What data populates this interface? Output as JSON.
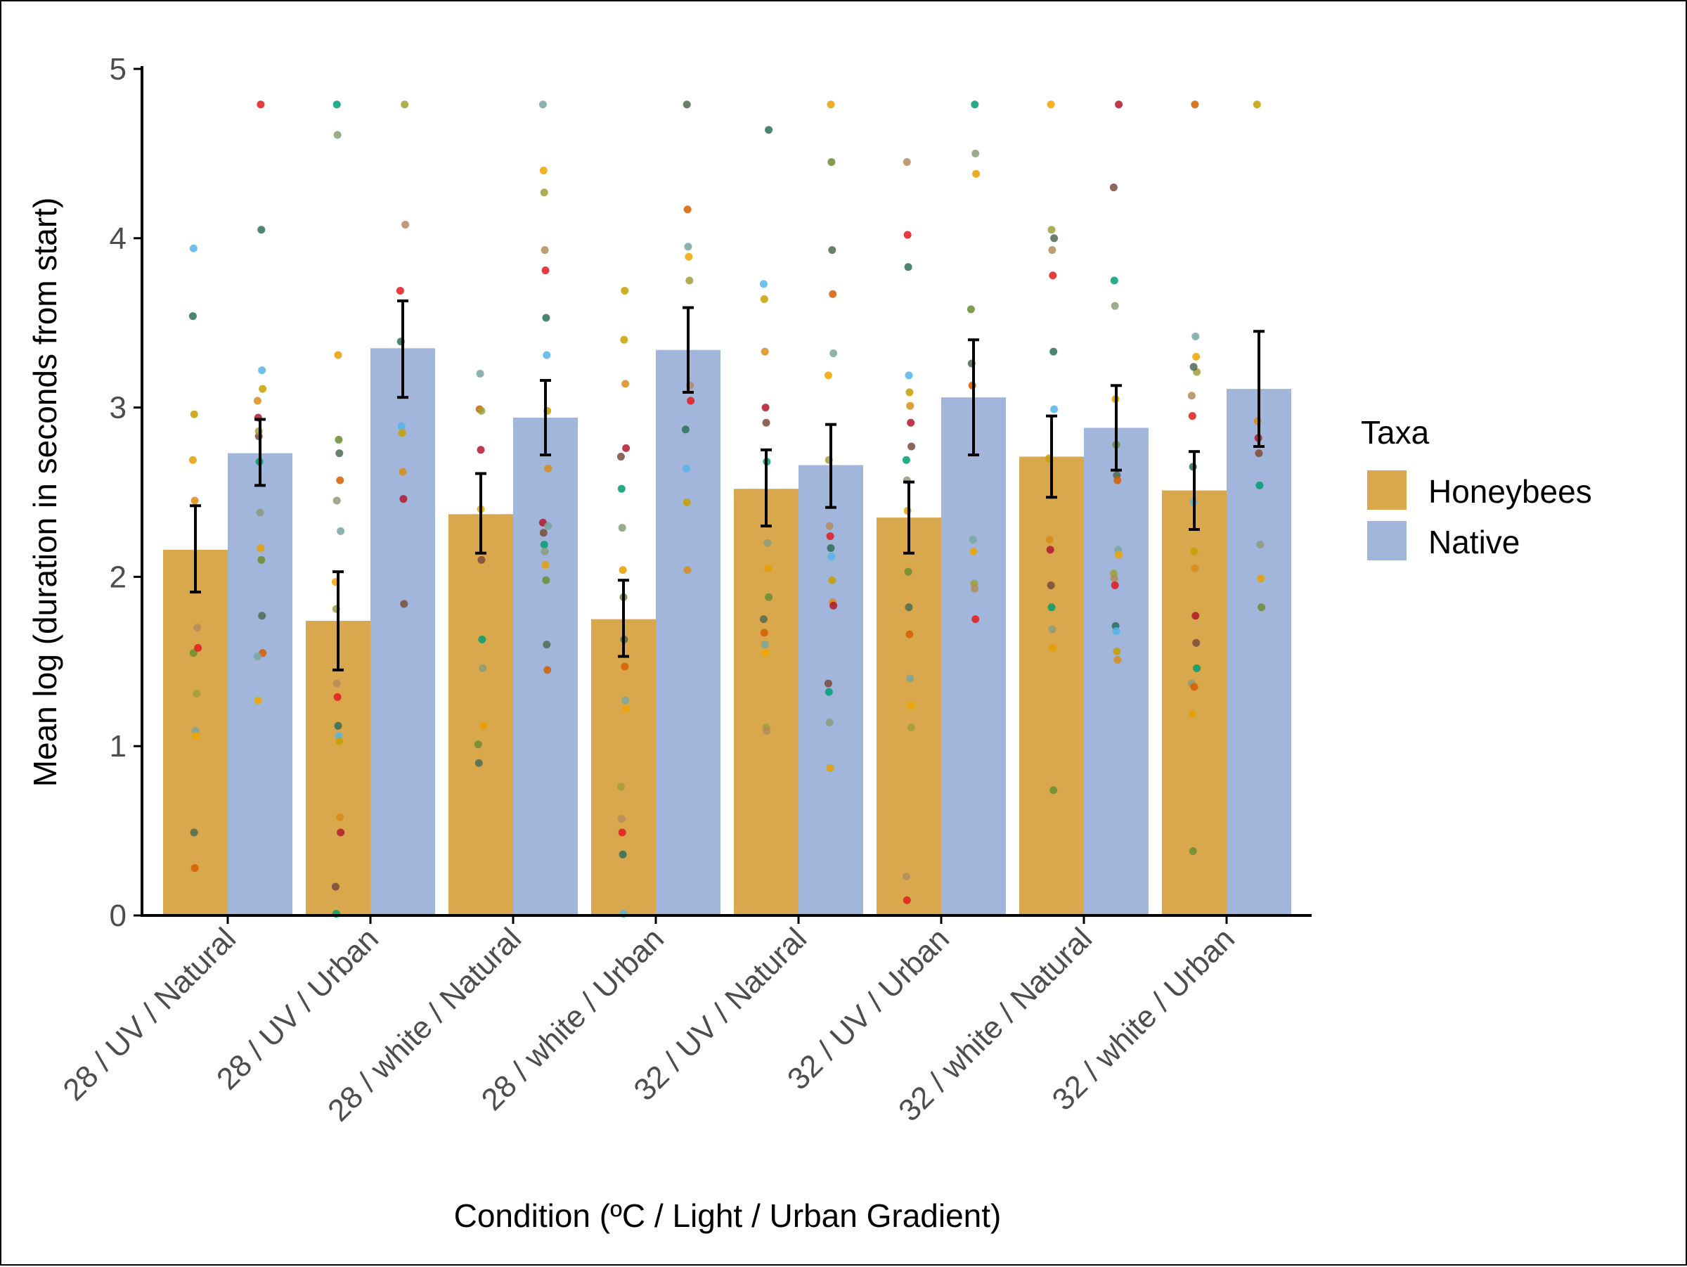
{
  "chart_data": {
    "type": "bar",
    "xlabel": "Condition (ºC / Light / Urban Gradient)",
    "ylabel": "Mean log (duration in seconds from start)",
    "ylim": [
      0,
      5
    ],
    "yticks": [
      0,
      1,
      2,
      3,
      4,
      5
    ],
    "grid": false,
    "legend": {
      "title": "Taxa",
      "position": "right"
    },
    "categories": [
      "28 / UV / Natural",
      "28 / UV / Urban",
      "28 / white / Natural",
      "28 / white / Urban",
      "32 / UV / Natural",
      "32 / UV / Urban",
      "32 / white / Natural",
      "32 / white / Urban"
    ],
    "series": [
      {
        "name": "Honeybees",
        "color": "#d9a84d",
        "values": [
          2.16,
          1.74,
          2.37,
          1.75,
          2.52,
          2.35,
          2.71,
          2.51
        ],
        "error_low": [
          1.91,
          1.45,
          2.14,
          1.53,
          2.3,
          2.14,
          2.47,
          2.28
        ],
        "error_high": [
          2.42,
          2.03,
          2.61,
          1.98,
          2.75,
          2.56,
          2.95,
          2.74
        ],
        "points": [
          [
            2.69,
            1.55,
            0.49,
            0.28,
            1.09,
            1.06,
            1.31,
            1.7,
            1.58,
            3.54,
            3.94,
            2.96,
            2.45
          ],
          [
            4.79,
            4.61,
            3.31,
            2.81,
            2.73,
            2.57,
            2.27,
            1.97,
            1.81,
            1.37,
            1.29,
            1.12,
            1.06,
            1.03,
            0.58,
            0.49,
            0.17,
            0.01,
            2.45
          ],
          [
            2.75,
            2.1,
            1.63,
            1.46,
            1.12,
            1.01,
            0.9,
            2.99,
            3.2,
            2.4,
            2.98
          ],
          [
            3.69,
            3.14,
            2.76,
            2.71,
            2.52,
            2.29,
            2.04,
            1.88,
            1.63,
            1.47,
            1.27,
            1.22,
            0.76,
            0.57,
            0.49,
            0.36,
            0.01,
            3.4
          ],
          [
            4.64,
            3.73,
            3.64,
            3.33,
            3.0,
            2.91,
            2.68,
            2.2,
            2.05,
            1.88,
            1.75,
            1.67,
            1.6,
            1.55,
            1.11,
            1.09
          ],
          [
            4.45,
            4.02,
            3.83,
            3.19,
            3.09,
            3.01,
            2.91,
            2.77,
            2.69,
            2.57,
            2.39,
            2.03,
            1.82,
            1.66,
            1.4,
            1.24,
            1.11,
            0.23,
            0.09
          ],
          [
            4.79,
            4.05,
            3.93,
            3.78,
            3.33,
            2.99,
            2.7,
            2.22,
            2.16,
            1.95,
            1.82,
            1.69,
            1.58,
            0.74,
            4.0
          ],
          [
            4.79,
            3.42,
            3.3,
            3.21,
            3.07,
            2.95,
            2.65,
            2.44,
            2.15,
            2.05,
            1.77,
            1.61,
            1.46,
            1.37,
            1.19,
            0.38,
            3.24,
            1.35
          ]
        ]
      },
      {
        "name": "Native",
        "color": "#a2b5db",
        "values": [
          2.73,
          3.35,
          2.94,
          3.34,
          2.66,
          3.06,
          2.88,
          3.11
        ],
        "error_low": [
          2.54,
          3.06,
          2.72,
          3.09,
          2.41,
          2.72,
          2.63,
          2.77
        ],
        "error_high": [
          2.93,
          3.63,
          3.16,
          3.59,
          2.9,
          3.4,
          3.13,
          3.45
        ],
        "points": [
          [
            4.79,
            4.05,
            3.22,
            3.11,
            3.04,
            2.94,
            2.83,
            2.68,
            2.38,
            2.17,
            2.1,
            1.77,
            1.55,
            1.53,
            1.27,
            2.86
          ],
          [
            4.79,
            4.08,
            3.69,
            3.39,
            2.89,
            2.85,
            2.62,
            2.46,
            1.84
          ],
          [
            4.79,
            4.4,
            4.27,
            3.93,
            3.81,
            3.53,
            3.31,
            2.98,
            2.64,
            2.32,
            2.26,
            2.19,
            2.15,
            2.07,
            1.98,
            1.6,
            1.45,
            2.3
          ],
          [
            4.79,
            4.17,
            3.95,
            3.89,
            3.75,
            3.13,
            3.04,
            2.87,
            2.64,
            2.44,
            2.04
          ],
          [
            4.79,
            4.45,
            3.93,
            3.67,
            3.32,
            3.19,
            2.69,
            2.3,
            2.24,
            2.17,
            2.12,
            1.98,
            1.85,
            1.83,
            1.37,
            1.32,
            1.14,
            0.87
          ],
          [
            4.79,
            4.5,
            4.38,
            3.58,
            3.26,
            3.13,
            2.22,
            2.15,
            1.96,
            1.93,
            1.75
          ],
          [
            4.79,
            4.3,
            3.75,
            3.6,
            3.05,
            2.78,
            2.6,
            2.57,
            2.16,
            2.13,
            2.02,
            1.99,
            1.95,
            1.71,
            1.68,
            1.56,
            1.51
          ],
          [
            4.79,
            2.92,
            2.82,
            2.73,
            2.54,
            2.19,
            1.99,
            1.82
          ]
        ]
      }
    ],
    "point_palette": [
      "#e69f00",
      "#f0a500",
      "#56b4e9",
      "#009e73",
      "#d55e00",
      "#e31a1c",
      "#b2182b",
      "#6a8d2f",
      "#a0a03a",
      "#c7a000",
      "#8b9c7a",
      "#7aa6a0",
      "#2e6e5a",
      "#7b4a3a",
      "#4d6b52",
      "#b38b5d",
      "#d98c1a"
    ]
  }
}
